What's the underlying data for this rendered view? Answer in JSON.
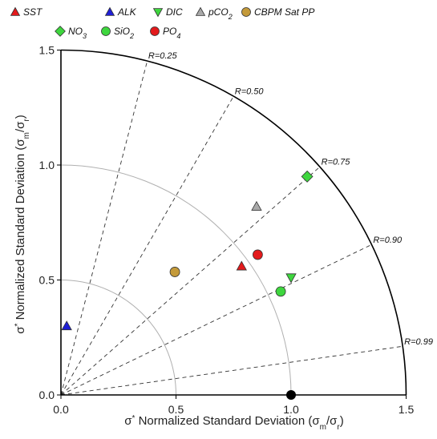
{
  "chart_data": {
    "type": "scatter",
    "subtype": "taylor-diagram",
    "xlabel": "σ* Normalized Standard Deviation (σm/σr)",
    "ylabel": "σ* Normalized Standard Deviation (σm/σr)",
    "xlim": [
      0,
      1.5
    ],
    "ylim": [
      0,
      1.5
    ],
    "x_ticks": [
      "0.0",
      "0.5",
      "1.0",
      "1.5"
    ],
    "y_ticks": [
      "0.0",
      "0.5",
      "1.0",
      "1.5"
    ],
    "std_arcs": [
      0.5,
      1.0
    ],
    "outer_arc": 1.5,
    "correlation_lines": [
      {
        "r": 0.25,
        "label": "R=0.25"
      },
      {
        "r": 0.5,
        "label": "R=0.50"
      },
      {
        "r": 0.75,
        "label": "R=0.75"
      },
      {
        "r": 0.9,
        "label": "R=0.90"
      },
      {
        "r": 0.99,
        "label": "R=0.99"
      }
    ],
    "legend_placement": "top",
    "series": [
      {
        "name": "SST",
        "marker": "triangle-up",
        "color": "#e31a1c",
        "x": 0.785,
        "y": 0.56
      },
      {
        "name": "ALK",
        "marker": "triangle-up",
        "color": "#1f1fd6",
        "x": 0.025,
        "y": 0.3
      },
      {
        "name": "DIC",
        "marker": "triangle-down",
        "color": "#3ed63e",
        "x": 1.0,
        "y": 0.51
      },
      {
        "name": "pCO2",
        "marker": "triangle-up",
        "color": "#a9a9a9",
        "x": 0.85,
        "y": 0.82
      },
      {
        "name": "CBPM Sat PP",
        "marker": "circle",
        "color": "#c49a3a",
        "x": 0.495,
        "y": 0.535
      },
      {
        "name": "NO3",
        "marker": "diamond",
        "color": "#3ed63e",
        "x": 1.07,
        "y": 0.95
      },
      {
        "name": "SiO2",
        "marker": "circle",
        "color": "#3ed63e",
        "x": 0.955,
        "y": 0.45
      },
      {
        "name": "PO4",
        "marker": "circle",
        "color": "#e31a1c",
        "x": 0.855,
        "y": 0.61
      }
    ],
    "reference_point": {
      "color": "#000000",
      "x": 1.0,
      "y": 0.0
    }
  }
}
